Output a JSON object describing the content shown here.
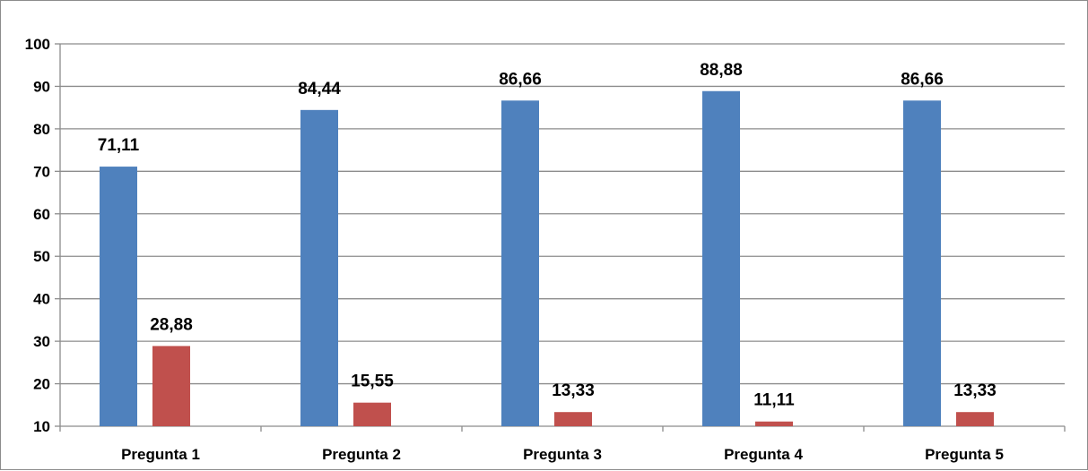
{
  "chart_data": {
    "type": "bar",
    "categories": [
      "Pregunta 1",
      "Pregunta 2",
      "Pregunta 3",
      "Pregunta 4",
      "Pregunta 5"
    ],
    "series": [
      {
        "values": [
          71.11,
          84.44,
          86.66,
          88.88,
          86.66
        ],
        "labels": [
          "71,11",
          "84,44",
          "86,66",
          "88,88",
          "86,66"
        ],
        "color": "#4f81bd"
      },
      {
        "values": [
          28.88,
          15.55,
          13.33,
          11.11,
          13.33
        ],
        "labels": [
          "28,88",
          "15,55",
          "13,33",
          "11,11",
          "13,33"
        ],
        "color": "#c0504d"
      }
    ],
    "ylim": [
      10,
      100
    ],
    "yticks": [
      "10",
      "20",
      "30",
      "40",
      "50",
      "60",
      "70",
      "80",
      "90",
      "100"
    ],
    "grid": true,
    "legend": "none"
  }
}
